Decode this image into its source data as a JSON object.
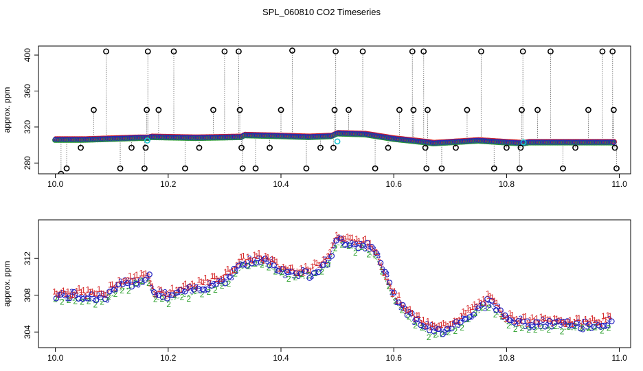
{
  "page": {
    "title": "SPL_060810  CO2 Timeseries"
  },
  "chart_data": [
    {
      "type": "scatter",
      "title": "SPL_060810  CO2 Timeseries",
      "ylabel": "approx. ppm",
      "xlabel": "",
      "xlim": [
        9.97,
        11.02
      ],
      "ylim": [
        268,
        410
      ],
      "xticks": [
        10.0,
        10.2,
        10.4,
        10.6,
        10.8,
        11.0
      ],
      "yticks": [
        280,
        320,
        360,
        400
      ],
      "grid": false,
      "colors": {
        "outlier": "#000000",
        "series_1": "#d62728",
        "series_2": "#2ca02c",
        "series_3": "#1f1fbf",
        "flagged": "#17c3d0",
        "connector": "#808080"
      },
      "baseline": [
        [
          10.0,
          306
        ],
        [
          10.05,
          306
        ],
        [
          10.1,
          307
        ],
        [
          10.15,
          308
        ],
        [
          10.165,
          308
        ],
        [
          10.17,
          309
        ],
        [
          10.25,
          308
        ],
        [
          10.33,
          309
        ],
        [
          10.335,
          311
        ],
        [
          10.4,
          310
        ],
        [
          10.45,
          309
        ],
        [
          10.49,
          310
        ],
        [
          10.5,
          313
        ],
        [
          10.55,
          312
        ],
        [
          10.6,
          307
        ],
        [
          10.66,
          303
        ],
        [
          10.67,
          302
        ],
        [
          10.75,
          305
        ],
        [
          10.8,
          303
        ],
        [
          10.83,
          302
        ],
        [
          10.84,
          303
        ],
        [
          10.9,
          303
        ],
        [
          10.95,
          303
        ],
        [
          10.99,
          303
        ]
      ],
      "spikes": [
        [
          10.01,
          268
        ],
        [
          10.02,
          274
        ],
        [
          10.045,
          297
        ],
        [
          10.068,
          339
        ],
        [
          10.09,
          404
        ],
        [
          10.115,
          274
        ],
        [
          10.135,
          297
        ],
        [
          10.158,
          274
        ],
        [
          10.16,
          297
        ],
        [
          10.162,
          339
        ],
        [
          10.164,
          404
        ],
        [
          10.183,
          339
        ],
        [
          10.21,
          404
        ],
        [
          10.23,
          274
        ],
        [
          10.255,
          297
        ],
        [
          10.28,
          339
        ],
        [
          10.3,
          404
        ],
        [
          10.325,
          404
        ],
        [
          10.327,
          339
        ],
        [
          10.33,
          297
        ],
        [
          10.332,
          274
        ],
        [
          10.355,
          274
        ],
        [
          10.38,
          297
        ],
        [
          10.4,
          339
        ],
        [
          10.42,
          405
        ],
        [
          10.445,
          274
        ],
        [
          10.47,
          297
        ],
        [
          10.493,
          297
        ],
        [
          10.495,
          339
        ],
        [
          10.497,
          404
        ],
        [
          10.52,
          339
        ],
        [
          10.545,
          404
        ],
        [
          10.567,
          274
        ],
        [
          10.59,
          297
        ],
        [
          10.61,
          339
        ],
        [
          10.633,
          404
        ],
        [
          10.635,
          339
        ],
        [
          10.653,
          404
        ],
        [
          10.656,
          297
        ],
        [
          10.658,
          274
        ],
        [
          10.66,
          339
        ],
        [
          10.685,
          274
        ],
        [
          10.71,
          297
        ],
        [
          10.73,
          339
        ],
        [
          10.755,
          404
        ],
        [
          10.778,
          274
        ],
        [
          10.8,
          297
        ],
        [
          10.823,
          274
        ],
        [
          10.825,
          297
        ],
        [
          10.827,
          339
        ],
        [
          10.829,
          404
        ],
        [
          10.855,
          339
        ],
        [
          10.878,
          404
        ],
        [
          10.9,
          274
        ],
        [
          10.922,
          297
        ],
        [
          10.945,
          339
        ],
        [
          10.97,
          404
        ],
        [
          10.988,
          404
        ],
        [
          10.99,
          339
        ],
        [
          10.992,
          297
        ],
        [
          10.995,
          274
        ]
      ],
      "flagged_points": [
        [
          10.163,
          305
        ],
        [
          10.5,
          304
        ],
        [
          10.83,
          303
        ]
      ]
    },
    {
      "type": "scatter",
      "title": "",
      "ylabel": "approx. ppm",
      "xlabel": "",
      "xlim": [
        9.97,
        11.02
      ],
      "ylim": [
        302.3,
        316.2
      ],
      "xticks": [
        10.0,
        10.2,
        10.4,
        10.6,
        10.8,
        11.0
      ],
      "yticks": [
        304,
        308,
        312
      ],
      "grid": false,
      "series_marker_glyphs": [
        "1",
        "2",
        "3"
      ],
      "base_trend": [
        [
          10.0,
          307.9
        ],
        [
          10.05,
          307.8
        ],
        [
          10.09,
          307.7
        ],
        [
          10.11,
          308.9
        ],
        [
          10.13,
          309.2
        ],
        [
          10.15,
          309.5
        ],
        [
          10.165,
          310.0
        ],
        [
          10.175,
          308.0
        ],
        [
          10.2,
          307.8
        ],
        [
          10.25,
          308.6
        ],
        [
          10.3,
          309.6
        ],
        [
          10.33,
          311.3
        ],
        [
          10.36,
          311.7
        ],
        [
          10.38,
          311.5
        ],
        [
          10.4,
          310.5
        ],
        [
          10.45,
          310.2
        ],
        [
          10.48,
          311.5
        ],
        [
          10.5,
          313.9
        ],
        [
          10.52,
          313.6
        ],
        [
          10.55,
          313.3
        ],
        [
          10.57,
          312.3
        ],
        [
          10.6,
          307.8
        ],
        [
          10.63,
          305.6
        ],
        [
          10.66,
          304.3
        ],
        [
          10.68,
          303.9
        ],
        [
          10.72,
          305.2
        ],
        [
          10.77,
          307.3
        ],
        [
          10.8,
          305.3
        ],
        [
          10.84,
          304.7
        ],
        [
          10.88,
          304.8
        ],
        [
          10.93,
          304.6
        ],
        [
          10.97,
          304.8
        ],
        [
          10.99,
          304.9
        ]
      ],
      "series": [
        {
          "name": "1",
          "offset": 0.5
        },
        {
          "name": "2",
          "offset": -0.4
        },
        {
          "name": "3",
          "offset": 0.1
        }
      ]
    }
  ]
}
